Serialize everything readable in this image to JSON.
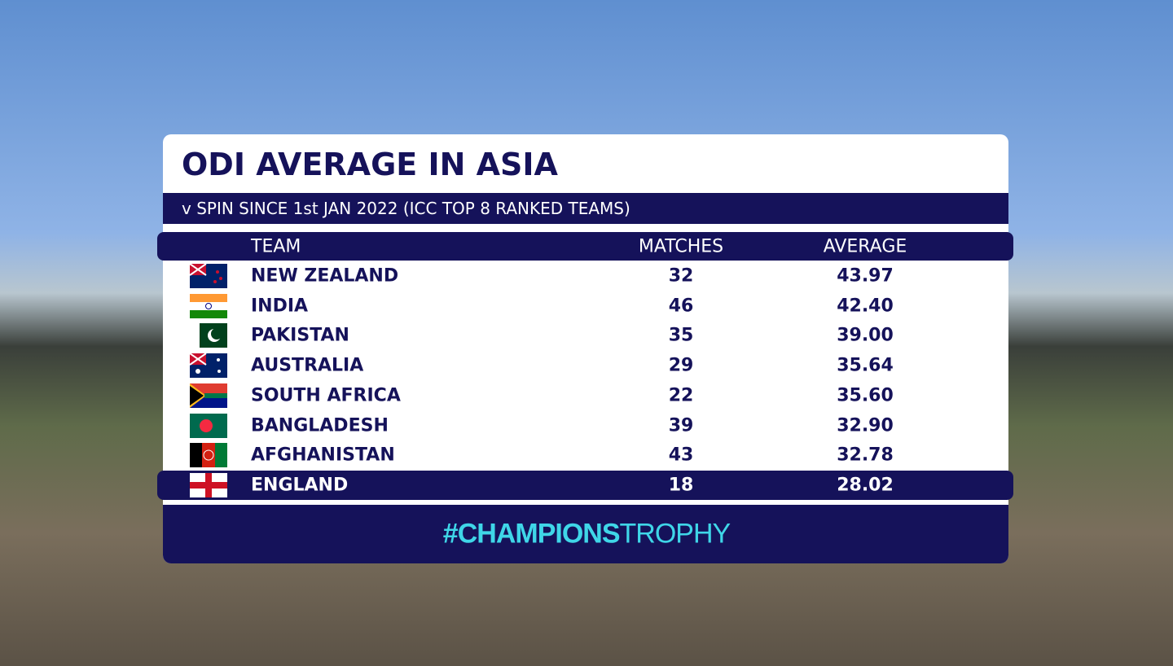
{
  "header": {
    "title": "ODI AVERAGE IN ASIA",
    "subtitle": "v SPIN SINCE 1st JAN 2022 (ICC TOP 8 RANKED TEAMS)"
  },
  "table": {
    "columns": [
      "TEAM",
      "MATCHES",
      "AVERAGE"
    ],
    "rows": [
      [
        "NEW ZEALAND",
        "32",
        "43.97"
      ],
      [
        "INDIA",
        "46",
        "42.40"
      ],
      [
        "PAKISTAN",
        "35",
        "39.00"
      ],
      [
        "AUSTRALIA",
        "29",
        "35.64"
      ],
      [
        "SOUTH AFRICA",
        "22",
        "35.60"
      ],
      [
        "BANGLADESH",
        "39",
        "32.90"
      ],
      [
        "AFGHANISTAN",
        "43",
        "32.78"
      ],
      [
        "ENGLAND",
        "18",
        "28.02"
      ]
    ],
    "highlight_row": 7
  },
  "footer": {
    "hashtag_bold": "#CHAMPIONS",
    "hashtag_light": "TROPHY"
  }
}
